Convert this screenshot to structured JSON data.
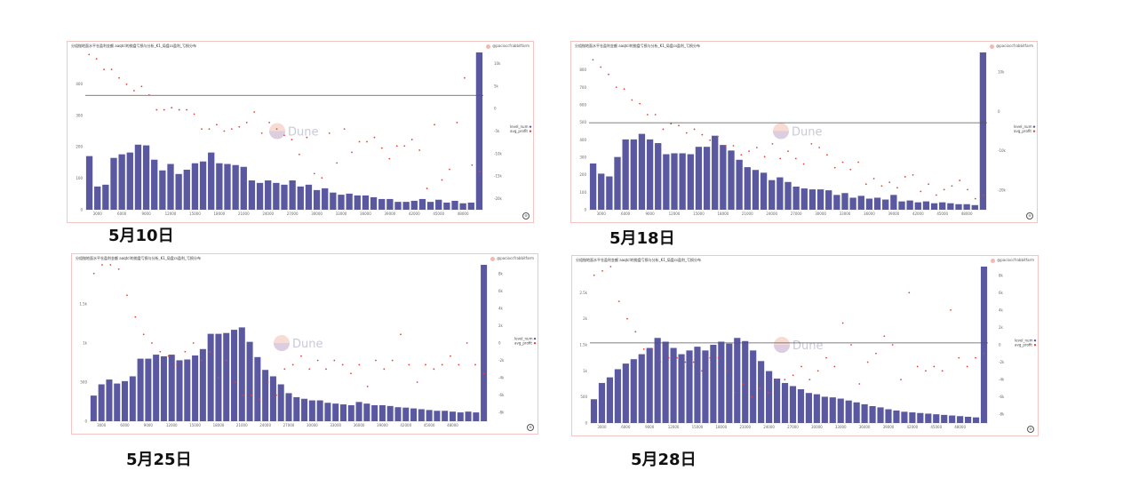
{
  "panels": [
    {
      "title": "分组抛地面水平仓盈利金额   aaqtcl的抛盘亏损与分析_K1_局盘cs盈利_亏损分布",
      "credit": "@pacioccfrabbitfarm",
      "watermark": "Dune",
      "date_label": "5月10日",
      "legend": [
        "level_num",
        "avg_profit"
      ],
      "chart_data": {
        "type": "bar",
        "bar_series_name": "level_num",
        "point_series_name": "avg_profit",
        "x_ticks": [
          "3000",
          "6000",
          "9000",
          "12000",
          "15000",
          "18000",
          "21000",
          "24000",
          "27000",
          "30000",
          "33000",
          "36000",
          "39000",
          "42000",
          "45000",
          "48000"
        ],
        "y_left_ticks": [
          "0",
          "100",
          "200",
          "300",
          "400"
        ],
        "y_left_max": 440,
        "y_right_ticks": [
          "-20k",
          "-15k",
          "-10k",
          "-5k",
          "0",
          "5k",
          "10k"
        ],
        "y_right_range": [
          -25000,
          12000
        ],
        "hline_left_value": 320,
        "bars": [
          150,
          65,
          70,
          145,
          155,
          160,
          182,
          180,
          140,
          110,
          128,
          100,
          112,
          130,
          135,
          160,
          130,
          128,
          125,
          120,
          82,
          75,
          82,
          75,
          70,
          82,
          65,
          70,
          55,
          60,
          48,
          42,
          45,
          40,
          40,
          35,
          30,
          30,
          22,
          22,
          25,
          30,
          22,
          28,
          20,
          25,
          18,
          20,
          440
        ],
        "points": [
          11500,
          10500,
          8000,
          8000,
          6000,
          4500,
          3000,
          4000,
          2000,
          -1500,
          -1500,
          -1000,
          -1500,
          -1500,
          -2500,
          -6000,
          -6000,
          -5000,
          -6500,
          -6000,
          -5500,
          -4500,
          -2000,
          -7000,
          -4500,
          -6000,
          -7500,
          -8500,
          -12000,
          -8000,
          -16500,
          -17500,
          -7000,
          -14000,
          -6000,
          -11500,
          -9000,
          -9000,
          -8000,
          -10500,
          -13000,
          -10000,
          -10000,
          -8500,
          -11000,
          -20000,
          -5000,
          -18000,
          -15500,
          -4500,
          6000,
          -14500,
          -16000
        ]
      }
    },
    {
      "title": "分组抛地面水平仓盈利金额   aaqtcl的抛盘亏损与分析_K1_局盘cs盈利_亏损分布",
      "credit": "@pacioccfrabbitfarm",
      "watermark": "Dune",
      "date_label": "5月18日",
      "legend": [
        "level_num",
        "avg_profit"
      ],
      "chart_data": {
        "type": "bar",
        "bar_series_name": "level_num",
        "point_series_name": "avg_profit",
        "x_ticks": [
          "3000",
          "6000",
          "9000",
          "12000",
          "15000",
          "18000",
          "21000",
          "24000",
          "27000",
          "30000",
          "33000",
          "36000",
          "39000",
          "42000",
          "45000",
          "48000"
        ],
        "y_left_ticks": [
          "0",
          "100",
          "200",
          "300",
          "400",
          "500",
          "600",
          "700",
          "800"
        ],
        "y_left_max": 850,
        "y_right_ticks": [
          "-20k",
          "-10k",
          "0",
          "10k"
        ],
        "y_right_range": [
          -25000,
          18000
        ],
        "hline_left_value": 470,
        "bars": [
          250,
          195,
          180,
          285,
          380,
          380,
          410,
          380,
          360,
          300,
          305,
          305,
          300,
          340,
          340,
          400,
          350,
          320,
          270,
          230,
          215,
          200,
          160,
          175,
          150,
          125,
          115,
          110,
          110,
          105,
          80,
          90,
          65,
          75,
          60,
          65,
          55,
          80,
          45,
          50,
          40,
          45,
          35,
          40,
          35,
          30,
          30,
          25,
          850
        ],
        "points": [
          16000,
          14000,
          12000,
          8500,
          8000,
          5000,
          4000,
          1000,
          1000,
          -3000,
          -1500,
          -2000,
          -4000,
          -3000,
          -4500,
          -6000,
          -5000,
          -7500,
          -7500,
          -10000,
          -9000,
          -8000,
          -10500,
          -7000,
          -11000,
          -9000,
          -11000,
          -12500,
          -7000,
          -8000,
          -10000,
          -13500,
          -12000,
          -14000,
          -12000,
          -18000,
          -16500,
          -18500,
          -17500,
          -19000,
          -16000,
          -15500,
          -20000,
          -18000,
          -21000,
          -19500,
          -18500,
          -17000,
          -19500,
          -22000,
          -21000
        ]
      }
    },
    {
      "title": "分组抛地面水平仓盈利金额   aaqtcl的抛盘亏损与分析_K1_局盘cs盈利_亏损分布",
      "credit": "@pacioccfrabbitfarm",
      "watermark": "Dune",
      "date_label": "5月25日",
      "legend": [
        "level_num",
        "avg_profit"
      ],
      "chart_data": {
        "type": "bar",
        "bar_series_name": "level_num",
        "point_series_name": "avg_profit",
        "x_ticks": [
          "3000",
          "6000",
          "9000",
          "12000",
          "15000",
          "18000",
          "21000",
          "24000",
          "27000",
          "30000",
          "33000",
          "36000",
          "39000",
          "42000",
          "45000",
          "48000"
        ],
        "y_left_ticks": [
          "0",
          "500",
          "1k",
          "1.5k"
        ],
        "y_left_max": 1950,
        "y_right_ticks": [
          "-8k",
          "-6k",
          "-4k",
          "-2k",
          "0",
          "2k",
          "4k",
          "6k",
          "8k"
        ],
        "y_right_range": [
          -9000,
          9000
        ],
        "hline_left_value": null,
        "bars": [
          320,
          460,
          520,
          470,
          500,
          560,
          780,
          780,
          830,
          810,
          830,
          760,
          770,
          820,
          900,
          1090,
          1090,
          1100,
          1140,
          1170,
          990,
          800,
          640,
          560,
          460,
          350,
          300,
          280,
          260,
          260,
          230,
          220,
          210,
          200,
          240,
          220,
          200,
          200,
          190,
          175,
          170,
          160,
          150,
          140,
          130,
          130,
          120,
          110,
          120,
          110,
          1950
        ],
        "points": [
          8000,
          9000,
          9000,
          8500,
          5500,
          3000,
          1000,
          0,
          -1000,
          -1500,
          -2500,
          -1000,
          0,
          -2000,
          -1000,
          -4000,
          -2000,
          -4500,
          -6000,
          -6000,
          -6500,
          -4500,
          -6000,
          -3000,
          -2500,
          -1500,
          -3000,
          -2000,
          -3000,
          -2000,
          -2500,
          -3500,
          -2500,
          -5000,
          -2000,
          -3000,
          -2000,
          1000,
          -2500,
          -4500,
          -2500,
          -3000,
          -2500,
          -1500,
          -2500,
          0,
          -2500,
          -3500
        ]
      }
    },
    {
      "title": "分组抛地面水平仓盈利金额   aaqtcl的抛盘亏损与分析_K1_局盘cs盈利_亏损分布",
      "credit": "@pacioccfrabbitfarm",
      "watermark": "Dune",
      "date_label": "5月28日",
      "legend": [
        "level_num",
        "avg_profit"
      ],
      "chart_data": {
        "type": "bar",
        "bar_series_name": "level_num",
        "point_series_name": "avg_profit",
        "x_ticks": [
          "3000",
          "6000",
          "9000",
          "12000",
          "15000",
          "18000",
          "21000",
          "24000",
          "27000",
          "30000",
          "33000",
          "36000",
          "39000",
          "42000",
          "45000",
          "48000"
        ],
        "y_left_ticks": [
          "0",
          "500",
          "1k",
          "1.5k",
          "2k",
          "2.5k"
        ],
        "y_left_max": 2500,
        "y_right_ticks": [
          "-8k",
          "-6k",
          "-4k",
          "-2k",
          "0",
          "2k",
          "4k",
          "6k",
          "8k"
        ],
        "y_right_range": [
          -9000,
          9000
        ],
        "hline_left_value": 1280,
        "bars": [
          380,
          640,
          730,
          860,
          950,
          1020,
          1100,
          1200,
          1360,
          1300,
          1200,
          1100,
          1160,
          1220,
          1160,
          1250,
          1300,
          1270,
          1360,
          1310,
          1160,
          990,
          830,
          710,
          640,
          590,
          540,
          480,
          460,
          420,
          410,
          390,
          360,
          330,
          300,
          270,
          250,
          220,
          200,
          180,
          170,
          160,
          150,
          140,
          130,
          120,
          110,
          100,
          90,
          2500
        ],
        "points": [
          8000,
          8500,
          9000,
          5000,
          3000,
          1500,
          -500,
          -500,
          -2000,
          -1500,
          -1500,
          -2000,
          -2000,
          -3000,
          -1500,
          -1500,
          -3000,
          -5500,
          -4500,
          -6000,
          -5000,
          -5500,
          -4000,
          -4000,
          -3500,
          -2500,
          -4000,
          -3000,
          -1500,
          -2500,
          2500,
          0,
          -4500,
          -2000,
          -1000,
          1000,
          0,
          -4000,
          6000,
          -2500,
          -3000,
          -2500,
          -3000,
          4000,
          -1500,
          -2500,
          -1500,
          -1000
        ]
      }
    }
  ]
}
